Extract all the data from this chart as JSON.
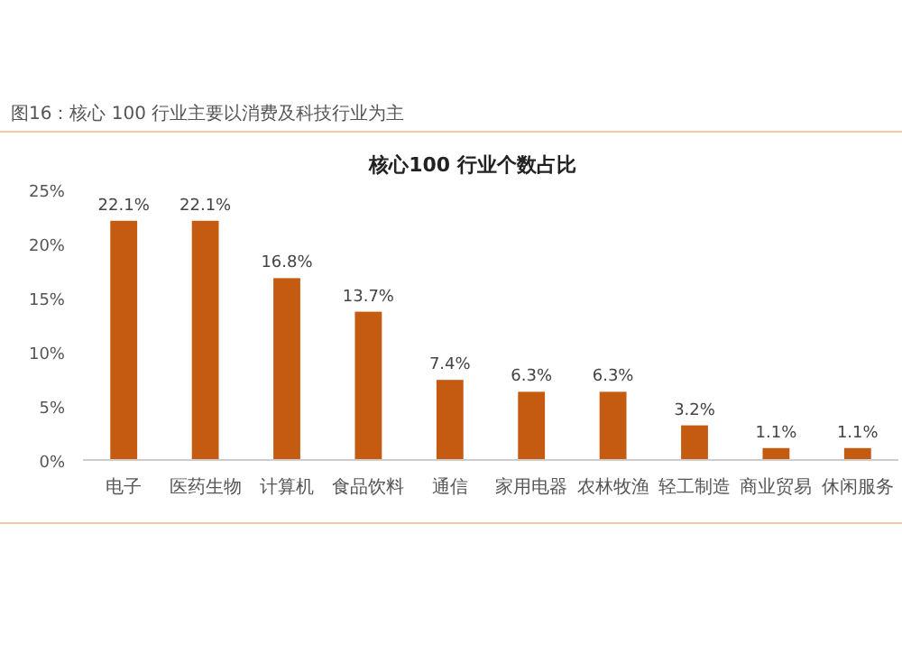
{
  "chart_data": {
    "type": "bar",
    "title": "图16：核心 100 行业主要以消费及科技行业为主",
    "subtitle": "核心100 行业个数占比",
    "categories": [
      "电子",
      "医药生物",
      "计算机",
      "食品饮料",
      "通信",
      "家用电器",
      "农林牧渔",
      "轻工制造",
      "商业贸易",
      "休闲服务"
    ],
    "values": [
      22.1,
      22.1,
      16.8,
      13.7,
      7.4,
      6.3,
      6.3,
      3.2,
      1.1,
      1.1
    ],
    "value_labels": [
      "22.1%",
      "22.1%",
      "16.8%",
      "13.7%",
      "7.4%",
      "6.3%",
      "6.3%",
      "3.2%",
      "1.1%",
      "1.1%"
    ],
    "color": "#c55a11",
    "ylim": [
      0,
      25
    ],
    "yticks": [
      {
        "value": 0,
        "label": "0%"
      },
      {
        "value": 5,
        "label": "5%"
      },
      {
        "value": 10,
        "label": "10%"
      },
      {
        "value": 15,
        "label": "15%"
      },
      {
        "value": 20,
        "label": "20%"
      },
      {
        "value": 25,
        "label": "25%"
      }
    ]
  }
}
